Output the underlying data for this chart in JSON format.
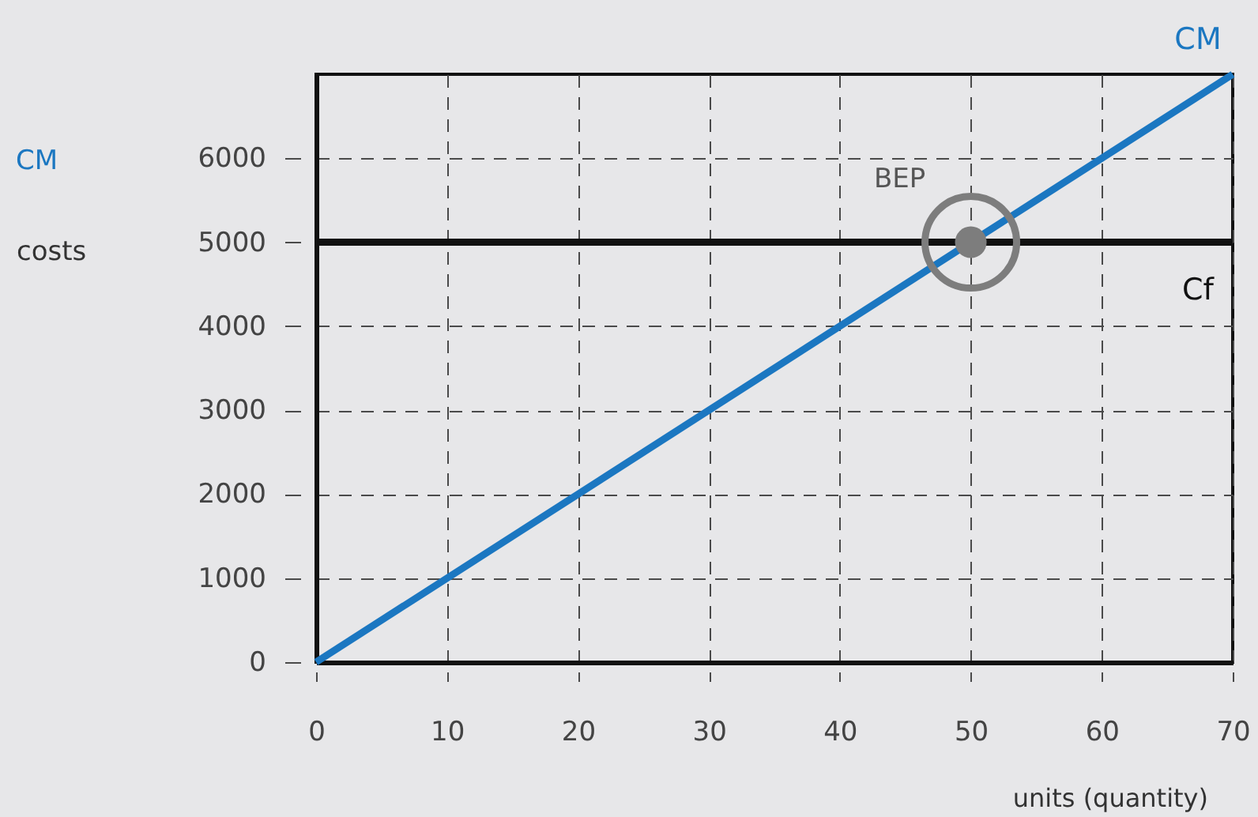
{
  "chart_data": {
    "type": "line",
    "xlabel": "units (quantity)",
    "ylabel": "costs",
    "annotations": [
      "CM"
    ],
    "series": [
      {
        "name": "CM",
        "color": "#1b77c1",
        "x": [
          0,
          70
        ],
        "values": [
          0,
          7000
        ]
      },
      {
        "name": "Cf",
        "color": "#111111",
        "x": [
          0,
          70
        ],
        "values": [
          5000,
          5000
        ]
      },
      {
        "name": "BEP",
        "type": "scatter",
        "marker": "circle",
        "color": "#7d7d7d",
        "x": [
          50
        ],
        "values": [
          5000
        ]
      }
    ],
    "xlim": [
      0,
      70
    ],
    "ylim": [
      0,
      7000
    ],
    "xticks": [
      0,
      10,
      20,
      30,
      40,
      50,
      60,
      70
    ],
    "yticks": [
      0,
      1000,
      2000,
      3000,
      4000,
      5000,
      6000
    ],
    "grid": true
  }
}
